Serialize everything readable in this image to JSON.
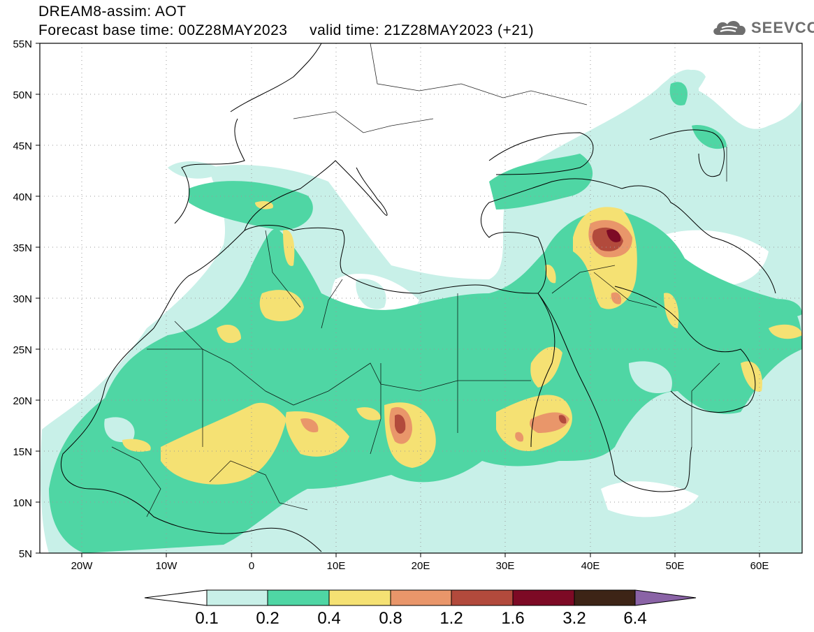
{
  "title": {
    "line1": "DREAM8-assim: AOT",
    "line2": "Forecast base time: 00Z28MAY2023     valid time: 21Z28MAY2023 (+21)"
  },
  "logo": {
    "text": "SEEVCCC",
    "icon": "cloud-icon"
  },
  "map": {
    "lat_ticks": [
      "55N",
      "50N",
      "45N",
      "40N",
      "35N",
      "30N",
      "25N",
      "20N",
      "15N",
      "10N",
      "5N"
    ],
    "lon_ticks": [
      "20W",
      "10W",
      "0",
      "10E",
      "20E",
      "30E",
      "40E",
      "50E",
      "60E"
    ],
    "lon_range": [
      -25,
      65
    ],
    "lat_range": [
      5,
      55
    ]
  },
  "colorbar": {
    "labels": [
      "0.1",
      "0.2",
      "0.4",
      "0.8",
      "1.2",
      "1.6",
      "3.2",
      "6.4"
    ],
    "colors": [
      "#ffffff",
      "#c8f0e8",
      "#4fd6a4",
      "#f5e173",
      "#e9966a",
      "#b24a3c",
      "#7d0a25",
      "#3d2416",
      "#8a63a6"
    ]
  }
}
